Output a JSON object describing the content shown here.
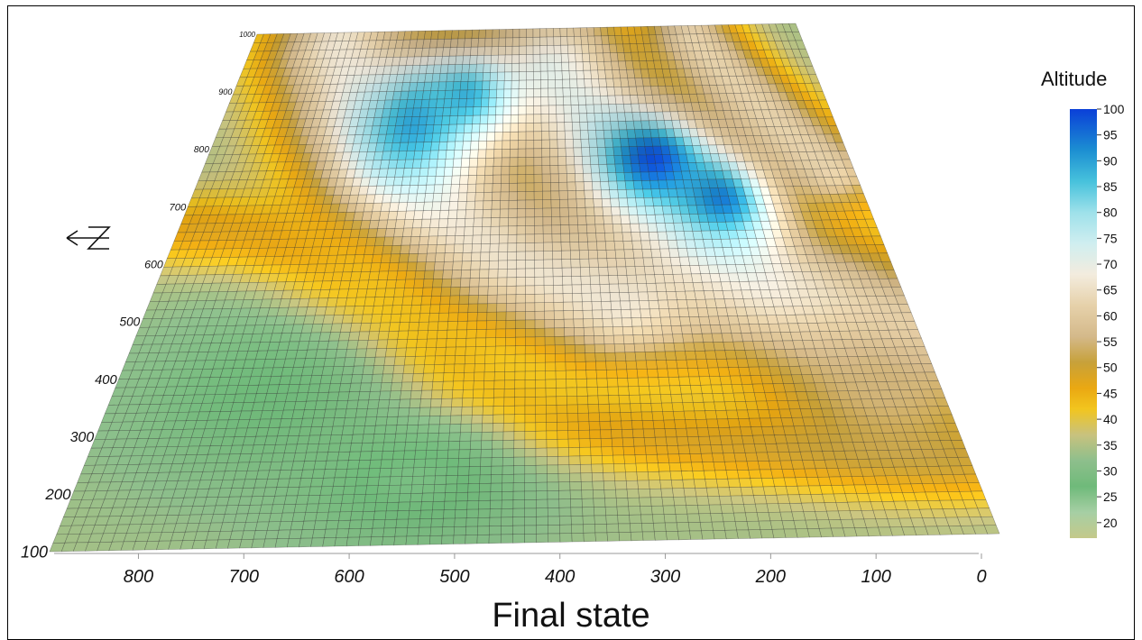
{
  "chart_data": {
    "type": "heatmap",
    "title": "Final state",
    "colorbar": {
      "title": "Altitude",
      "ticks": [
        100,
        95,
        90,
        85,
        80,
        75,
        70,
        65,
        60,
        55,
        50,
        45,
        40,
        35,
        30,
        25,
        20
      ],
      "range": [
        17,
        100
      ],
      "stops": [
        {
          "value": 17,
          "color": "#c4c98a"
        },
        {
          "value": 22,
          "color": "#a6cfa4"
        },
        {
          "value": 27,
          "color": "#6fba7a"
        },
        {
          "value": 32,
          "color": "#8ebf8c"
        },
        {
          "value": 37,
          "color": "#c8c27e"
        },
        {
          "value": 42,
          "color": "#f2c51e"
        },
        {
          "value": 46,
          "color": "#eaa812"
        },
        {
          "value": 51,
          "color": "#c7a13a"
        },
        {
          "value": 56,
          "color": "#d4b98a"
        },
        {
          "value": 62,
          "color": "#e6d1aa"
        },
        {
          "value": 68,
          "color": "#f3ecde"
        },
        {
          "value": 74,
          "color": "#cfeef0"
        },
        {
          "value": 80,
          "color": "#9ee1ea"
        },
        {
          "value": 86,
          "color": "#47c2dc"
        },
        {
          "value": 92,
          "color": "#1c8fd2"
        },
        {
          "value": 100,
          "color": "#0a3fd8"
        }
      ]
    },
    "x_axis": {
      "ticks": [
        800,
        700,
        600,
        500,
        400,
        300,
        200,
        100,
        0
      ],
      "range": [
        880,
        0
      ]
    },
    "y_axis": {
      "ticks": [
        100,
        200,
        300,
        400,
        500,
        600,
        700,
        800,
        900,
        1000
      ],
      "range": [
        100,
        1000
      ]
    },
    "grid_size": [
      80,
      60
    ],
    "features": [
      {
        "kind": "base",
        "value": 34
      },
      {
        "kind": "ridge",
        "value": 66,
        "path": [
          [
            0.15,
            0.98
          ],
          [
            0.22,
            0.85
          ],
          [
            0.31,
            0.72
          ],
          [
            0.4,
            0.62
          ],
          [
            0.47,
            0.55
          ],
          [
            0.56,
            0.5
          ],
          [
            0.62,
            0.46
          ]
        ],
        "width": 0.09
      },
      {
        "kind": "ridge",
        "value": 48,
        "path": [
          [
            0.03,
            0.62
          ],
          [
            0.12,
            0.6
          ],
          [
            0.2,
            0.55
          ],
          [
            0.27,
            0.47
          ],
          [
            0.35,
            0.4
          ],
          [
            0.43,
            0.3
          ],
          [
            0.52,
            0.23
          ],
          [
            0.62,
            0.2
          ],
          [
            0.72,
            0.18
          ],
          [
            0.85,
            0.16
          ],
          [
            0.98,
            0.14
          ]
        ],
        "width": 0.055
      },
      {
        "kind": "ridge",
        "value": 70,
        "path": [
          [
            0.55,
            0.92
          ],
          [
            0.62,
            0.8
          ],
          [
            0.68,
            0.7
          ],
          [
            0.75,
            0.58
          ],
          [
            0.84,
            0.48
          ],
          [
            0.95,
            0.4
          ]
        ],
        "width": 0.1
      },
      {
        "kind": "ridge",
        "value": 62,
        "path": [
          [
            0.8,
            0.98
          ],
          [
            0.88,
            0.85
          ],
          [
            0.96,
            0.72
          ]
        ],
        "width": 0.06
      },
      {
        "kind": "peak",
        "value": 90,
        "center": [
          0.32,
          0.82
        ],
        "radius": [
          0.07,
          0.09
        ]
      },
      {
        "kind": "peak",
        "value": 88,
        "center": [
          0.4,
          0.87
        ],
        "radius": [
          0.06,
          0.06
        ]
      },
      {
        "kind": "peak",
        "value": 99,
        "center": [
          0.7,
          0.74
        ],
        "radius": [
          0.06,
          0.06
        ]
      },
      {
        "kind": "peak",
        "value": 94,
        "center": [
          0.79,
          0.66
        ],
        "radius": [
          0.05,
          0.06
        ]
      },
      {
        "kind": "peak",
        "value": 27,
        "center": [
          0.18,
          0.3
        ],
        "radius": [
          0.12,
          0.13
        ]
      },
      {
        "kind": "peak",
        "value": 26,
        "center": [
          0.38,
          0.12
        ],
        "radius": [
          0.1,
          0.1
        ]
      },
      {
        "kind": "peak",
        "value": 55,
        "center": [
          0.93,
          0.3
        ],
        "radius": [
          0.09,
          0.12
        ]
      }
    ]
  },
  "north_arrow": {
    "icon": "north-arrow-icon",
    "letter": "N"
  }
}
